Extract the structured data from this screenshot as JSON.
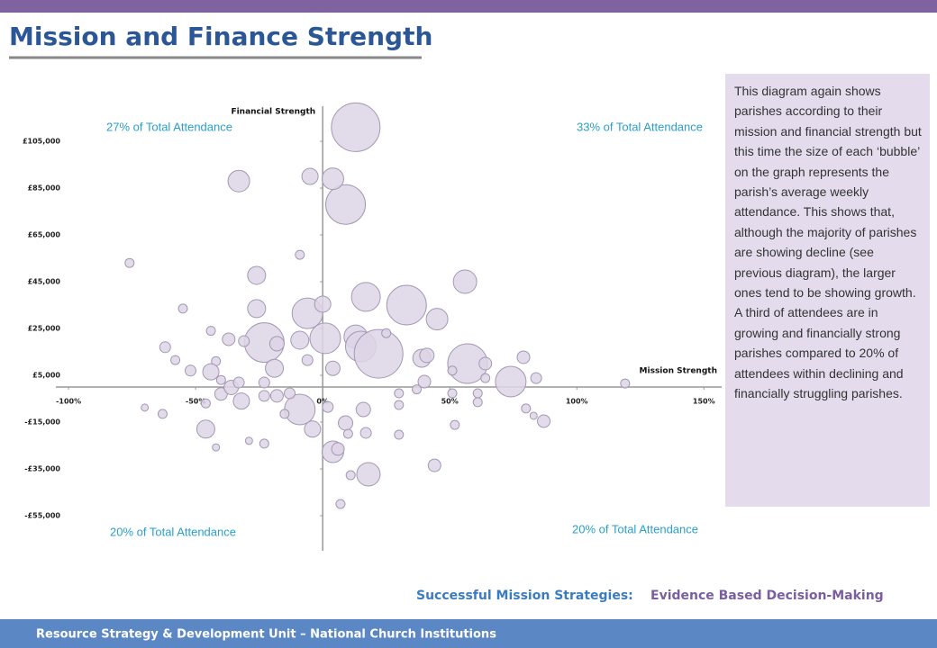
{
  "header": {
    "title": "Mission and Finance Strength"
  },
  "description": "This diagram again shows parishes according to their mission and financial strength but this time the size of each ‘bubble’ on the graph represents the parish’s average weekly attendance. This shows that, although the majority of parishes are showing decline (see previous diagram), the larger ones tend to be showing growth. A third of attendees are in growing and financially strong parishes compared to 20% of attendees within declining and financially struggling parishes.",
  "subtitle": {
    "lead": "Successful Mission Strategies:",
    "rest": "Evidence Based Decision-Making"
  },
  "footer": "Resource Strategy & Development Unit – National Church Institutions",
  "chart_data": {
    "type": "bubble",
    "xlabel": "Mission Strength",
    "ylabel": "Financial Strength",
    "annotations": [
      "27% of Total Attendance",
      "33% of Total Attendance",
      "20% of Total Attendance",
      "20% of Total Attendance"
    ],
    "xlim": [
      -105,
      157
    ],
    "ylim": [
      -70000,
      120000
    ],
    "xticks": [
      {
        "value": -100,
        "label": "-100%"
      },
      {
        "value": -50,
        "label": "-50%"
      },
      {
        "value": 0,
        "label": "0%"
      },
      {
        "value": 50,
        "label": "50%"
      },
      {
        "value": 100,
        "label": "100%"
      },
      {
        "value": 150,
        "label": "150%"
      }
    ],
    "yticks": [
      {
        "value": 105000,
        "label": "£105,000"
      },
      {
        "value": 85000,
        "label": "£85,000"
      },
      {
        "value": 65000,
        "label": "£65,000"
      },
      {
        "value": 45000,
        "label": "£45,000"
      },
      {
        "value": 25000,
        "label": "£25,000"
      },
      {
        "value": 5000,
        "label": "£5,000"
      },
      {
        "value": -15000,
        "label": "-£15,000"
      },
      {
        "value": -35000,
        "label": "-£35,000"
      },
      {
        "value": -55000,
        "label": "-£55,000"
      }
    ],
    "color": "#ddd5e6",
    "edge": "#a597b3",
    "x": [
      13,
      9,
      4,
      -5,
      -33,
      -76,
      -9,
      -26,
      56,
      17,
      33,
      45,
      -6,
      0,
      -26,
      -55,
      -23,
      1,
      13,
      15,
      22,
      25,
      -9,
      -18,
      -37,
      -31,
      -44,
      -62,
      -58,
      -42,
      -52,
      -44,
      -19,
      -6,
      4,
      39,
      41,
      57,
      64,
      79,
      74,
      84,
      119,
      64,
      51,
      40,
      37,
      61,
      61,
      87,
      80,
      83,
      -9,
      -18,
      -23,
      -32,
      -40,
      -36,
      -46,
      -46,
      -70,
      -63,
      2,
      -4,
      9,
      10,
      16,
      17,
      4,
      6,
      18,
      11,
      7,
      44,
      30,
      52,
      -23,
      -42,
      -29,
      -13,
      -15,
      -23,
      -33,
      -40,
      30,
      30,
      51
    ],
    "values": [
      111000,
      78000,
      89000,
      90000,
      88000,
      53000,
      56500,
      47700,
      45000,
      38500,
      35000,
      29000,
      31500,
      35400,
      33500,
      33500,
      19000,
      20800,
      21500,
      17300,
      14200,
      23000,
      20000,
      18500,
      20400,
      19600,
      24000,
      17000,
      11500,
      11000,
      7000,
      6500,
      8000,
      11500,
      8000,
      12300,
      13500,
      10000,
      10000,
      12700,
      2300,
      3800,
      1500,
      3800,
      7000,
      2300,
      -1000,
      -2700,
      -6500,
      -14600,
      -9200,
      -12300,
      -9600,
      -3800,
      -3800,
      -6000,
      -3000,
      -200,
      -18000,
      -7000,
      -8800,
      -11500,
      -8500,
      -18000,
      -15400,
      -20000,
      -9600,
      -19600,
      -27700,
      -26500,
      -37300,
      -37700,
      -50000,
      -33500,
      -20400,
      -16200,
      -24200,
      -25800,
      -23000,
      -2700,
      -11500,
      1900,
      1900,
      3000,
      -7700,
      -2700,
      -2700
    ],
    "sizes": [
      27,
      22,
      12,
      9,
      12,
      5,
      5,
      10,
      13,
      16,
      22,
      12,
      17,
      9,
      10,
      5,
      22,
      17,
      13,
      17,
      27,
      5,
      10,
      8,
      7,
      6,
      5,
      6,
      5,
      5,
      6,
      9,
      10,
      6,
      8,
      10,
      8,
      22,
      7,
      7,
      17,
      6,
      5,
      5,
      5,
      7,
      5,
      5,
      5,
      7,
      5,
      4,
      17,
      7,
      6,
      9,
      7,
      8,
      10,
      5,
      4,
      5,
      6,
      9,
      8,
      5,
      8,
      6,
      12,
      7,
      13,
      5,
      5,
      7,
      5,
      5,
      5,
      4,
      4,
      6,
      5,
      6,
      6,
      5,
      5,
      5,
      5
    ]
  }
}
